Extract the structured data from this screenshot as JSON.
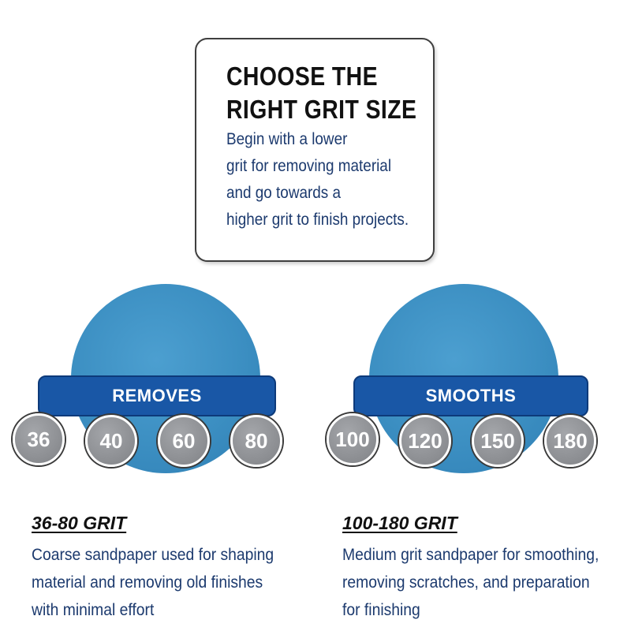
{
  "card": {
    "title_lines": [
      "CHOOSE THE",
      "RIGHT GRIT SIZE"
    ],
    "body_lines": [
      "Begin with a lower",
      "grit for removing material",
      "and go towards a",
      "higher grit to finish projects."
    ]
  },
  "colors": {
    "disc_blue": "#3c8fc2",
    "banner_blue": "#1957a6",
    "grit_gray": "#8b8d91",
    "body_text_navy": "#1c3a6e"
  },
  "groups": [
    {
      "banner": "REMOVES",
      "grits": [
        "36",
        "40",
        "60",
        "80"
      ],
      "title": "36-80 GRIT",
      "description_lines": [
        "Coarse sandpaper used for shaping",
        "material and removing old finishes",
        "with minimal effort"
      ]
    },
    {
      "banner": "SMOOTHS",
      "grits": [
        "100",
        "120",
        "150",
        "180"
      ],
      "title": "100-180 GRIT",
      "description_lines": [
        "Medium grit sandpaper for smoothing,",
        "removing scratches, and preparation",
        "for finishing"
      ]
    }
  ]
}
